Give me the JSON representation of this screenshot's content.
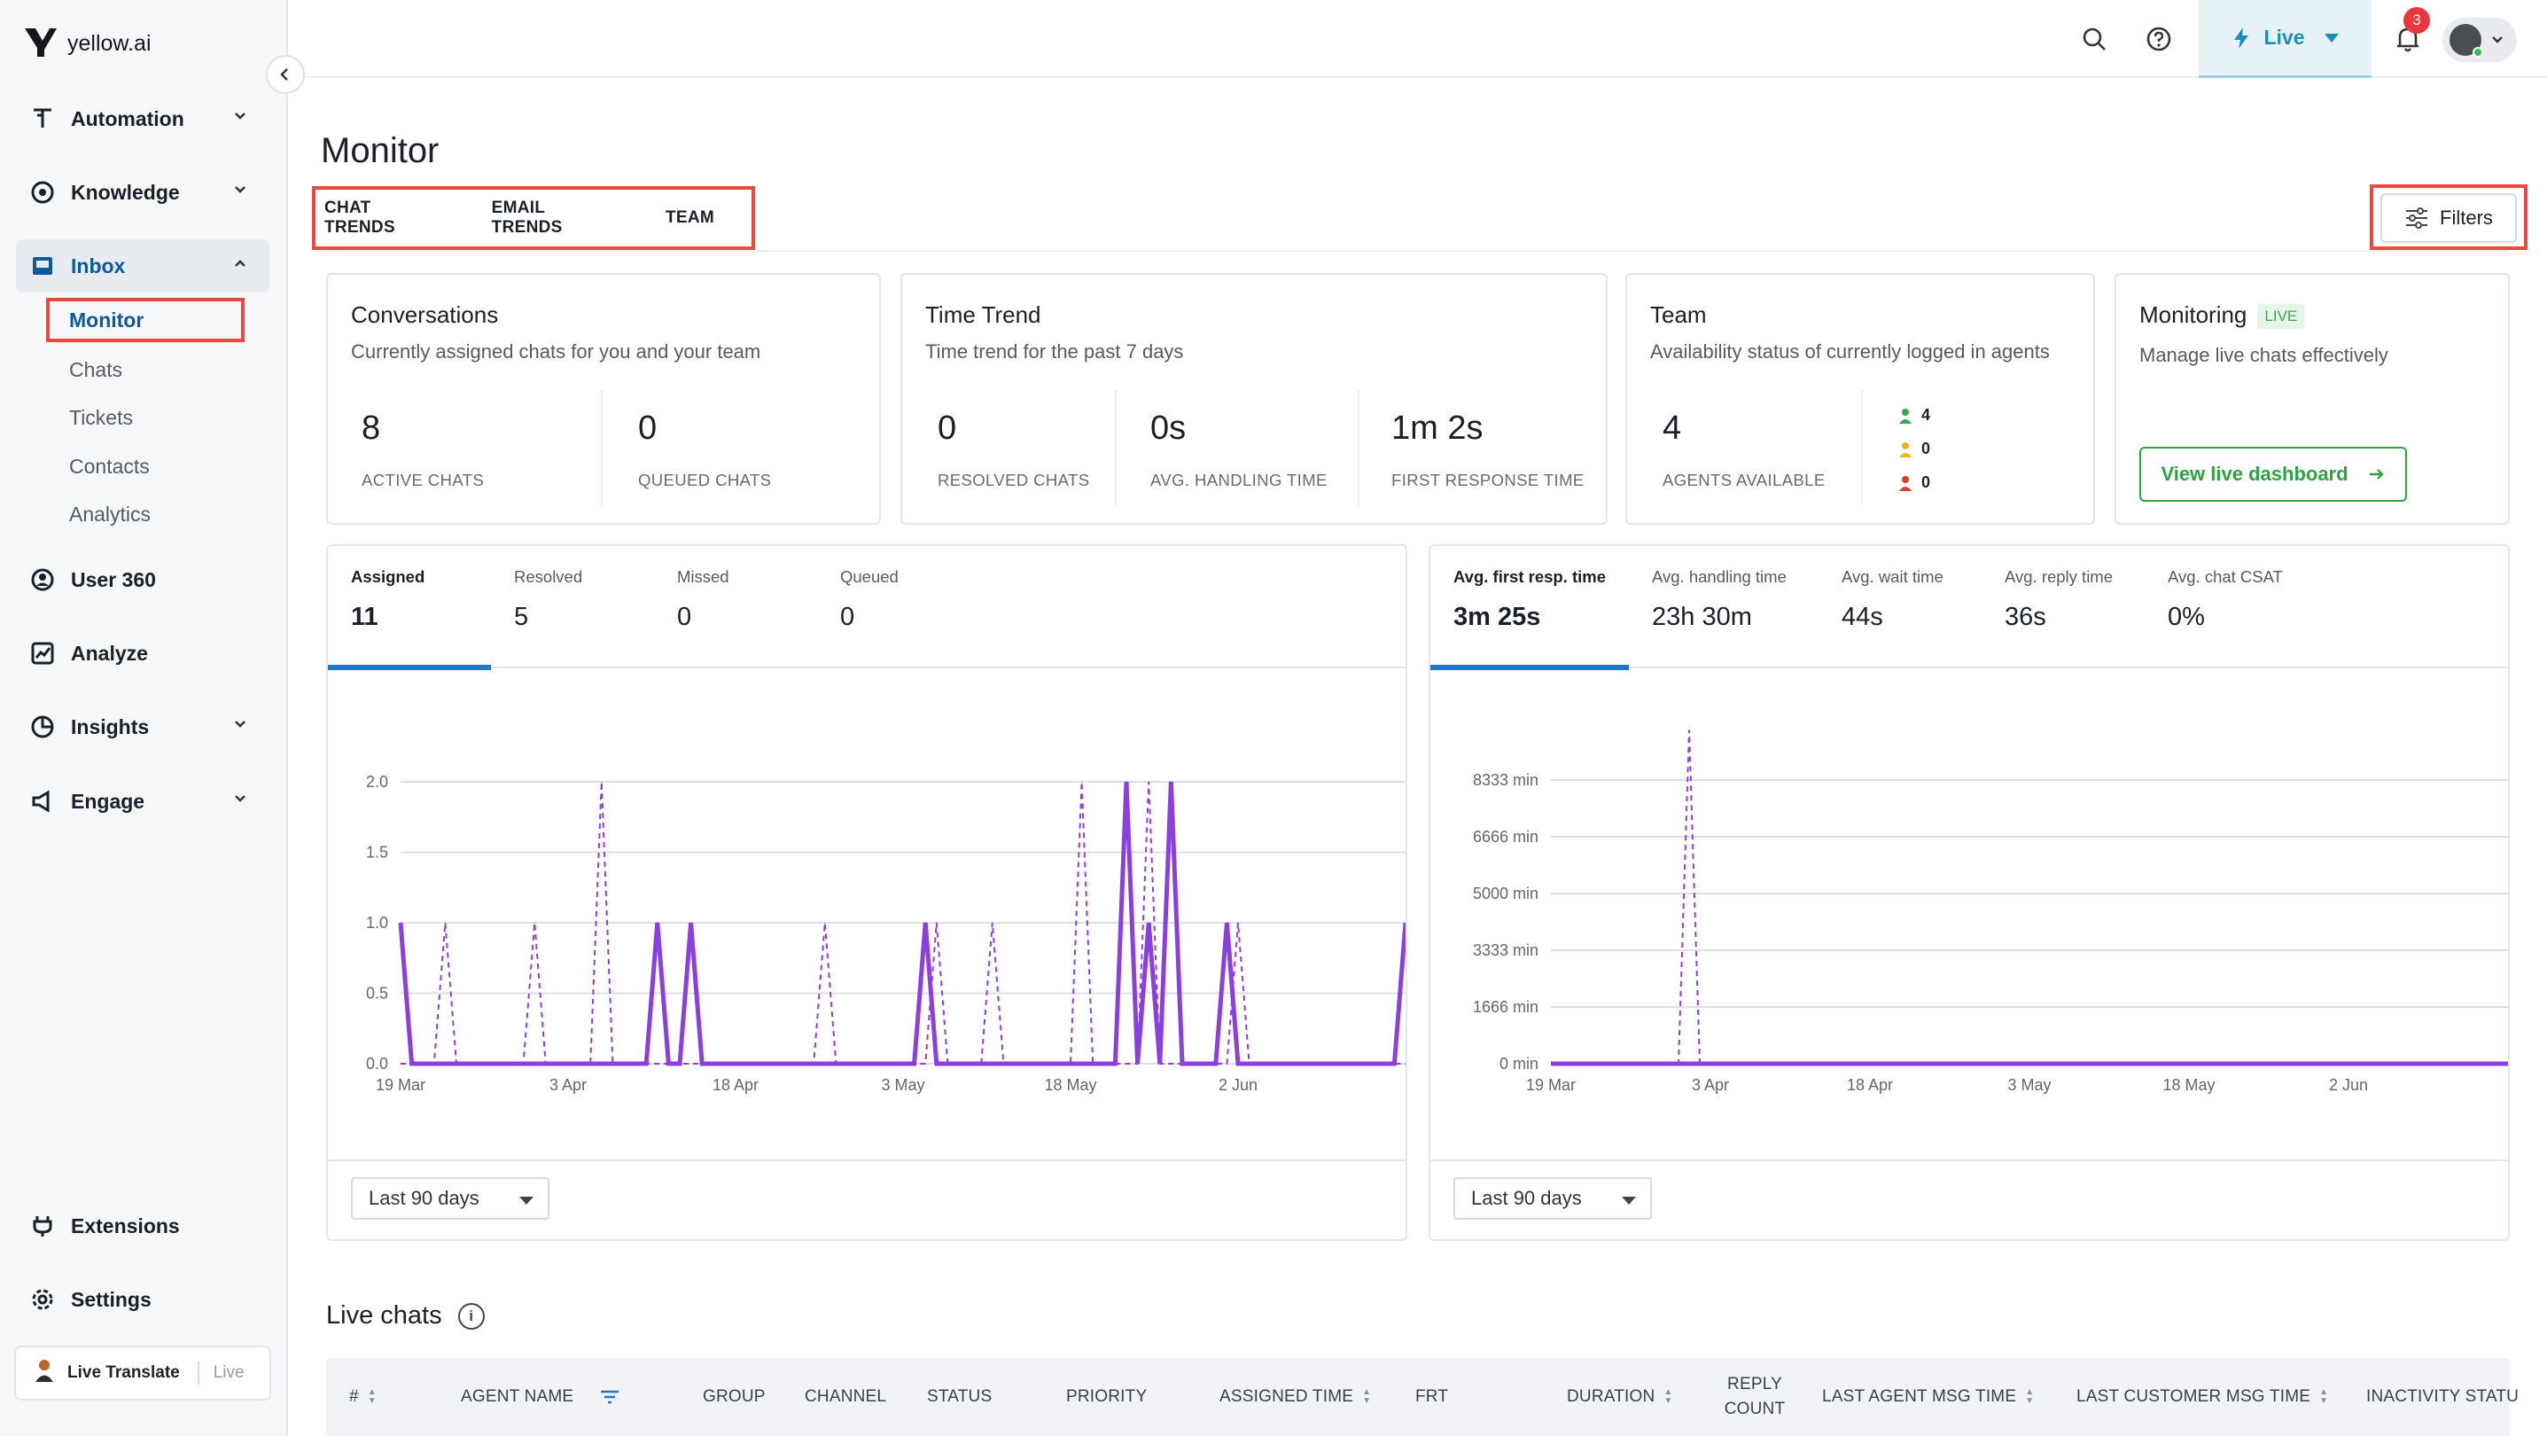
{
  "app": {
    "logo_text": "yellow.ai"
  },
  "sidebar": {
    "items": [
      {
        "label": "Automation",
        "icon": "automation-icon",
        "expandable": true
      },
      {
        "label": "Knowledge",
        "icon": "knowledge-icon",
        "expandable": true
      },
      {
        "label": "Inbox",
        "icon": "inbox-icon",
        "expanded": true,
        "active": true
      },
      {
        "label": "User 360",
        "icon": "user-360-icon"
      },
      {
        "label": "Analyze",
        "icon": "analyze-icon"
      },
      {
        "label": "Insights",
        "icon": "insights-icon",
        "expandable": true
      },
      {
        "label": "Engage",
        "icon": "engage-icon",
        "expandable": true
      }
    ],
    "inbox_subitems": [
      "Monitor",
      "Chats",
      "Tickets",
      "Contacts",
      "Analytics"
    ],
    "bottom_items": [
      {
        "label": "Extensions",
        "icon": "extensions-icon"
      },
      {
        "label": "Settings",
        "icon": "settings-icon"
      }
    ],
    "live_translate": {
      "label": "Live Translate",
      "status": "Live"
    }
  },
  "topbar": {
    "env_label": "Live",
    "notification_count": "3",
    "colors": {
      "live_accent": "#1a8fb8",
      "badge": "#e8373e"
    }
  },
  "page": {
    "title": "Monitor",
    "tabs": [
      "CHAT TRENDS",
      "EMAIL TRENDS",
      "TEAM"
    ],
    "filters_label": "Filters"
  },
  "cards": {
    "conversations": {
      "title": "Conversations",
      "subtitle": "Currently assigned chats for you and your team",
      "stats": [
        {
          "value": "8",
          "label": "ACTIVE CHATS"
        },
        {
          "value": "0",
          "label": "QUEUED CHATS"
        }
      ]
    },
    "time_trend": {
      "title": "Time Trend",
      "subtitle": "Time trend for the past 7 days",
      "stats": [
        {
          "value": "0",
          "label": "RESOLVED CHATS"
        },
        {
          "value": "0s",
          "label": "AVG. HANDLING TIME"
        },
        {
          "value": "1m 2s",
          "label": "FIRST RESPONSE TIME"
        }
      ]
    },
    "team": {
      "title": "Team",
      "subtitle": "Availability status of currently logged in agents",
      "stats": [
        {
          "value": "4",
          "label": "AGENTS AVAILABLE"
        }
      ],
      "status_counts": [
        {
          "status": "available",
          "count": "4",
          "color": "#3aa64e"
        },
        {
          "status": "away",
          "count": "0",
          "color": "#f1b31c"
        },
        {
          "status": "busy",
          "count": "0",
          "color": "#e23b2e"
        }
      ]
    },
    "monitoring": {
      "title": "Monitoring",
      "badge": "LIVE",
      "subtitle": "Manage live chats effectively",
      "button_label": "View live dashboard"
    }
  },
  "chart_left": {
    "metric_tabs": [
      {
        "label": "Assigned",
        "value": "11",
        "selected": true
      },
      {
        "label": "Resolved",
        "value": "5"
      },
      {
        "label": "Missed",
        "value": "0"
      },
      {
        "label": "Queued",
        "value": "0"
      }
    ],
    "range": "Last 90 days"
  },
  "chart_right": {
    "metric_tabs": [
      {
        "label": "Avg. first resp. time",
        "value": "3m 25s",
        "selected": true
      },
      {
        "label": "Avg. handling time",
        "value": "23h 30m"
      },
      {
        "label": "Avg. wait time",
        "value": "44s"
      },
      {
        "label": "Avg. reply time",
        "value": "36s"
      },
      {
        "label": "Avg. chat CSAT",
        "value": "0%"
      }
    ],
    "range": "Last 90 days"
  },
  "chart_data": [
    {
      "type": "line",
      "x_ticks": [
        "19 Mar",
        "3 Apr",
        "18 Apr",
        "3 May",
        "18 May",
        "2 Jun"
      ],
      "y_ticks": [
        "0.0",
        "0.5",
        "1.0",
        "1.5",
        "2.0"
      ],
      "ylim": [
        0,
        2
      ],
      "days": 91,
      "series": [
        {
          "style": "solid",
          "color": "#8b3fe0",
          "spikes": [
            [
              0,
              1
            ],
            [
              23,
              1
            ],
            [
              26,
              1
            ],
            [
              47,
              1
            ],
            [
              65,
              2
            ],
            [
              67,
              1
            ],
            [
              69,
              2
            ],
            [
              74,
              1
            ],
            [
              90,
              1
            ]
          ]
        },
        {
          "style": "dashed",
          "color": "#8b3fe0",
          "spikes": [
            [
              4,
              1
            ],
            [
              12,
              1
            ],
            [
              18,
              2
            ],
            [
              38,
              1
            ],
            [
              48,
              1
            ],
            [
              53,
              1
            ],
            [
              61,
              2
            ],
            [
              67,
              2
            ],
            [
              75,
              1
            ]
          ]
        }
      ],
      "grid": true
    },
    {
      "type": "line",
      "x_ticks": [
        "19 Mar",
        "3 Apr",
        "18 Apr",
        "3 May",
        "18 May",
        "2 Jun"
      ],
      "y_ticks": [
        "0 min",
        "1666 min",
        "3333 min",
        "5000 min",
        "6666 min",
        "8333 min"
      ],
      "ylim": [
        0,
        10000
      ],
      "days": 91,
      "series": [
        {
          "style": "solid",
          "color": "#8b3fe0",
          "spikes": []
        },
        {
          "style": "dashed",
          "color": "#8b3fe0",
          "spikes": [
            [
              13,
              9800
            ]
          ]
        }
      ],
      "grid": true
    }
  ],
  "live_chats": {
    "title": "Live chats",
    "columns": [
      {
        "label": "#",
        "sortable": true
      },
      {
        "label": "AGENT NAME",
        "filterable": true
      },
      {
        "label": "GROUP"
      },
      {
        "label": "CHANNEL"
      },
      {
        "label": "STATUS"
      },
      {
        "label": "PRIORITY"
      },
      {
        "label": "ASSIGNED TIME",
        "sortable": true
      },
      {
        "label": "FRT"
      },
      {
        "label": "DURATION",
        "sortable": true
      },
      {
        "label": "REPLY COUNT"
      },
      {
        "label": "LAST AGENT MSG TIME",
        "sortable": true
      },
      {
        "label": "LAST CUSTOMER MSG TIME",
        "sortable": true
      },
      {
        "label": "INACTIVITY STATU"
      }
    ]
  }
}
